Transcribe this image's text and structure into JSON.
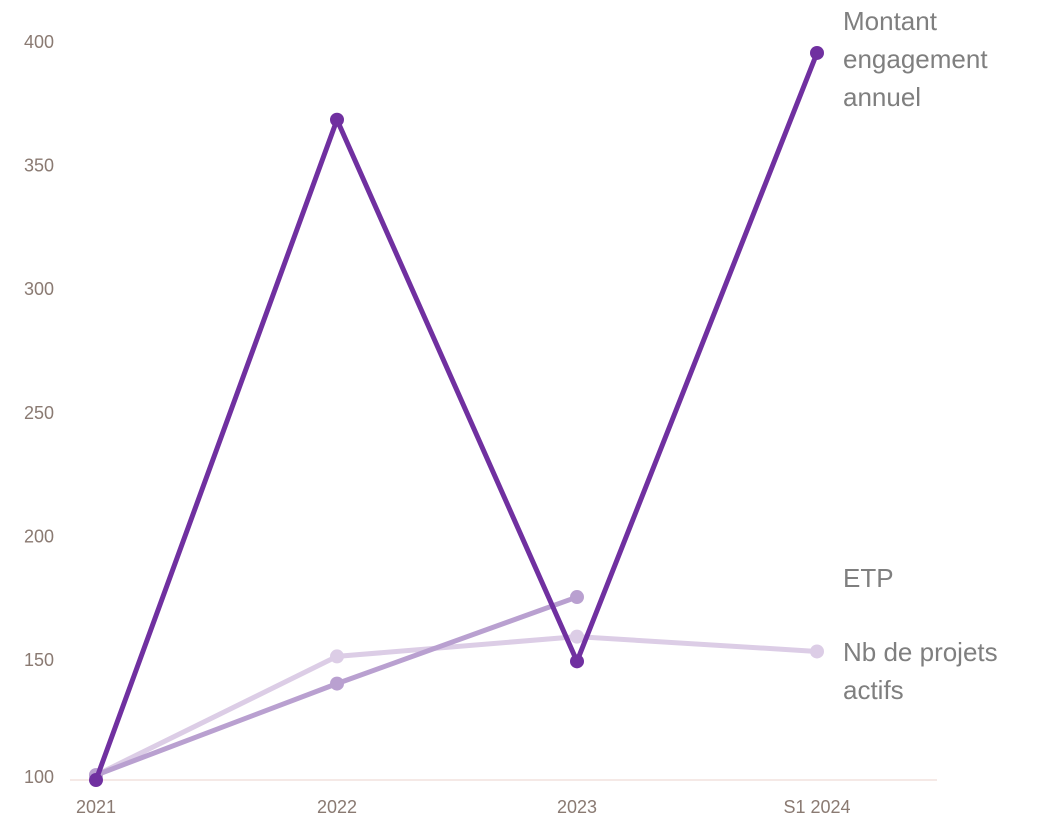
{
  "chart_data": {
    "type": "line",
    "categories": [
      "2021",
      "2022",
      "2023",
      "S1 2024"
    ],
    "series": [
      {
        "name": "Montant engagement annuel",
        "color": "#7030a0",
        "values": [
          102,
          369,
          150,
          396
        ]
      },
      {
        "name": "ETP",
        "color": "#b9a0d0",
        "values": [
          104,
          141,
          176,
          null
        ]
      },
      {
        "name": "Nb de projets actifs",
        "color": "#dccde6",
        "values": [
          104,
          152,
          160,
          154
        ]
      }
    ],
    "ylim": [
      100,
      415
    ],
    "yticks": [
      100,
      150,
      200,
      250,
      300,
      350,
      400
    ],
    "grid": false
  }
}
